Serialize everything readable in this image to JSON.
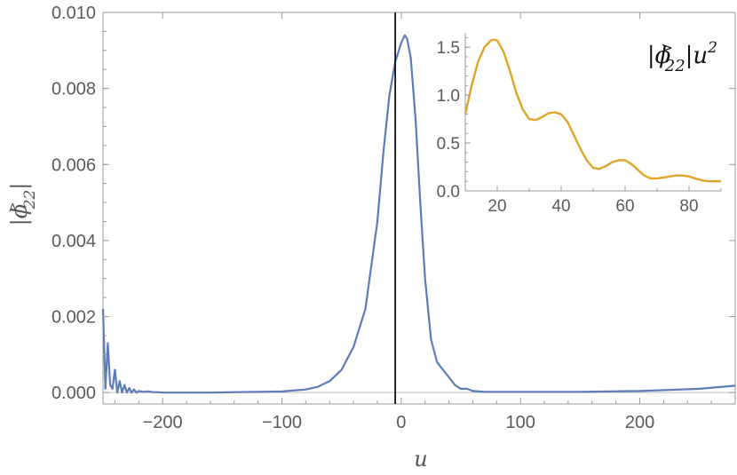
{
  "chart_data": [
    {
      "type": "line",
      "title": "",
      "xlabel": "u",
      "ylabel": "|ϕ>22|",
      "ylabel_parts": {
        "open": "|",
        "symbol": "ϕ",
        "sup": ">",
        "sub": "22",
        "close": "|"
      },
      "xlim": [
        -250,
        280
      ],
      "ylim": [
        -0.0003,
        0.01
      ],
      "x_ticks": [
        -200,
        -100,
        0,
        100,
        200
      ],
      "x_tick_labels": [
        "−200",
        "−100",
        "0",
        "100",
        "200"
      ],
      "y_ticks": [
        0,
        0.002,
        0.004,
        0.006,
        0.008,
        0.01
      ],
      "y_tick_labels": [
        "0.000",
        "0.002",
        "0.004",
        "0.006",
        "0.008",
        "0.010"
      ],
      "grid": false,
      "vertical_line_x": -5,
      "series": [
        {
          "color": "#5b7db8",
          "x": [
            -250,
            -248,
            -246,
            -244,
            -242,
            -240,
            -238,
            -236,
            -234,
            -232,
            -230,
            -228,
            -226,
            -224,
            -222,
            -220,
            -216,
            -212,
            -208,
            -204,
            -200,
            -190,
            -180,
            -160,
            -140,
            -120,
            -100,
            -80,
            -70,
            -60,
            -50,
            -40,
            -30,
            -20,
            -15,
            -10,
            -5,
            0,
            3,
            5,
            8,
            12,
            16,
            20,
            25,
            30,
            35,
            40,
            45,
            50,
            55,
            60,
            70,
            80,
            100,
            150,
            200,
            250,
            280
          ],
          "y": [
            0.0022,
            0.0001,
            0.0013,
            0.0002,
            0.0001,
            0.0006,
            0.0,
            0.0003,
            0.0,
            0.0002,
            0.0,
            0.00012,
            0.0,
            8e-05,
            0.0,
            4e-05,
            2e-05,
            3e-05,
            1e-05,
            1e-05,
            0.0,
            0.0,
            0.0,
            0.0,
            1e-05,
            2e-05,
            3e-05,
            8e-05,
            0.00015,
            0.0003,
            0.0006,
            0.0012,
            0.0022,
            0.0045,
            0.0063,
            0.0078,
            0.0087,
            0.0092,
            0.0094,
            0.0093,
            0.0088,
            0.0072,
            0.005,
            0.003,
            0.0014,
            0.0008,
            0.0006,
            0.0004,
            0.0002,
            0.0001,
            0.0001,
            4e-05,
            2e-05,
            2e-05,
            2e-05,
            2e-05,
            4e-05,
            0.0001,
            0.00018
          ]
        }
      ]
    },
    {
      "type": "line",
      "title": "",
      "annotation_parts": {
        "open": "|",
        "symbol": "ϕ",
        "sup": ">",
        "sub": "22",
        "close": "|",
        "var": "u",
        "exp": "2"
      },
      "xlim": [
        10,
        90
      ],
      "ylim": [
        0,
        1.65
      ],
      "x_ticks": [
        20,
        40,
        60,
        80
      ],
      "x_tick_labels": [
        "20",
        "40",
        "60",
        "80"
      ],
      "y_ticks": [
        0,
        0.5,
        1.0,
        1.5
      ],
      "y_tick_labels": [
        "0.0",
        "0.5",
        "1.0",
        "1.5"
      ],
      "grid": false,
      "series": [
        {
          "color": "#e0a427",
          "x": [
            10,
            12,
            14,
            16,
            18,
            19,
            20,
            22,
            24,
            26,
            28,
            30,
            32,
            34,
            36,
            38,
            40,
            42,
            44,
            46,
            48,
            50,
            52,
            54,
            56,
            58,
            60,
            62,
            64,
            66,
            68,
            70,
            72,
            74,
            76,
            78,
            80,
            82,
            84,
            86,
            88,
            90
          ],
          "y": [
            0.8,
            1.1,
            1.35,
            1.5,
            1.57,
            1.58,
            1.57,
            1.45,
            1.25,
            1.02,
            0.85,
            0.75,
            0.74,
            0.77,
            0.81,
            0.82,
            0.8,
            0.72,
            0.58,
            0.44,
            0.32,
            0.24,
            0.23,
            0.26,
            0.3,
            0.32,
            0.32,
            0.28,
            0.22,
            0.16,
            0.13,
            0.13,
            0.14,
            0.15,
            0.16,
            0.16,
            0.15,
            0.13,
            0.11,
            0.1,
            0.1,
            0.1
          ]
        }
      ]
    }
  ]
}
